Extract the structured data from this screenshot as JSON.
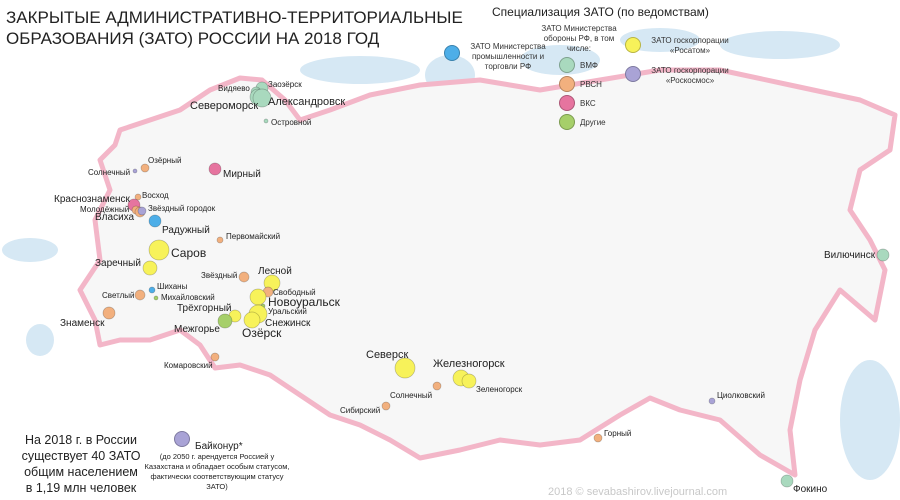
{
  "title": [
    "ЗАКРЫТЫЕ АДМИНИСТРАТИВНО-ТЕРРИТОРИАЛЬНЫЕ",
    "ОБРАЗОВАНИЯ (ЗАТО) РОССИИ НА 2018 ГОД"
  ],
  "colors": {
    "vmf": "#a9d9be",
    "rvsn": "#f2b07e",
    "vks": "#e6749f",
    "other": "#a6cf6a",
    "minprom": "#4daee8",
    "rosatom": "#f7f25a",
    "roscosmos": "#a9a3d6",
    "border": "#f3b6c8",
    "water": "#d6e8f4"
  },
  "legend": {
    "title": "Специализация ЗАТО (по ведомствам)",
    "minprom": "ЗАТО Министерства промышленности и торговли РФ",
    "mod_header": "ЗАТО Министерства обороны РФ, в том числе:",
    "vmf": "ВМФ",
    "rvsn": "РВСН",
    "vks": "ВКС",
    "other": "Другие",
    "rosatom": "ЗАТО госкорпорации «Росатом»",
    "roscosmos": "ЗАТО госкорпорации «Роскосмос»"
  },
  "cities": [
    {
      "name": "Заозёрск",
      "type": "vmf"
    },
    {
      "name": "Видяево",
      "type": "vmf"
    },
    {
      "name": "Североморск",
      "type": "vmf"
    },
    {
      "name": "Александровск",
      "type": "vmf"
    },
    {
      "name": "Островной",
      "type": "vmf"
    },
    {
      "name": "Мирный",
      "type": "vks"
    },
    {
      "name": "Озёрный",
      "type": "rvsn"
    },
    {
      "name": "Солнечный",
      "type": "roscosmos"
    },
    {
      "name": "Восход",
      "type": "rvsn"
    },
    {
      "name": "Краснознаменск",
      "type": "vks"
    },
    {
      "name": "Молодёжный",
      "type": "rvsn"
    },
    {
      "name": "Власиха",
      "type": "rvsn"
    },
    {
      "name": "Звёздный городок",
      "type": "roscosmos"
    },
    {
      "name": "Радужный",
      "type": "minprom"
    },
    {
      "name": "Первомайский",
      "type": "rvsn"
    },
    {
      "name": "Саров",
      "type": "rosatom"
    },
    {
      "name": "Заречный",
      "type": "rosatom"
    },
    {
      "name": "Звёздный",
      "type": "rvsn"
    },
    {
      "name": "Шиханы",
      "type": "minprom"
    },
    {
      "name": "Светлый",
      "type": "rvsn"
    },
    {
      "name": "Михайловский",
      "type": "other"
    },
    {
      "name": "Лесной",
      "type": "rosatom"
    },
    {
      "name": "Свободный",
      "type": "rvsn"
    },
    {
      "name": "Новоуральск",
      "type": "rosatom"
    },
    {
      "name": "Уральский",
      "type": "other"
    },
    {
      "name": "Снежинск",
      "type": "rosatom"
    },
    {
      "name": "Озёрск",
      "type": "rosatom"
    },
    {
      "name": "Трёхгорный",
      "type": "rosatom"
    },
    {
      "name": "Межгорье",
      "type": "other"
    },
    {
      "name": "Знаменск",
      "type": "rvsn"
    },
    {
      "name": "Комаровский",
      "type": "rvsn"
    },
    {
      "name": "Северск",
      "type": "rosatom"
    },
    {
      "name": "Железногорск",
      "type": "rosatom"
    },
    {
      "name": "Зеленогорск",
      "type": "rosatom"
    },
    {
      "name": "Солнечный",
      "type": "rvsn"
    },
    {
      "name": "Сибирский",
      "type": "rvsn"
    },
    {
      "name": "Горный",
      "type": "rvsn"
    },
    {
      "name": "Циолковский",
      "type": "roscosmos"
    },
    {
      "name": "Вилючинск",
      "type": "vmf"
    },
    {
      "name": "Фокино",
      "type": "vmf"
    }
  ],
  "baikonur": {
    "name": "Байконур*",
    "type": "roscosmos",
    "note": "(до 2050 г. арендуется Россией у Казахстана и обладает особым статусом, фактически соответствующим статусу ЗАТО)"
  },
  "summary": [
    "На 2018 г. в России",
    "существует 40 ЗАТО",
    "общим населением",
    "в 1,19 млн человек"
  ],
  "copyright": "2018 © sevabashirov.livejournal.com"
}
